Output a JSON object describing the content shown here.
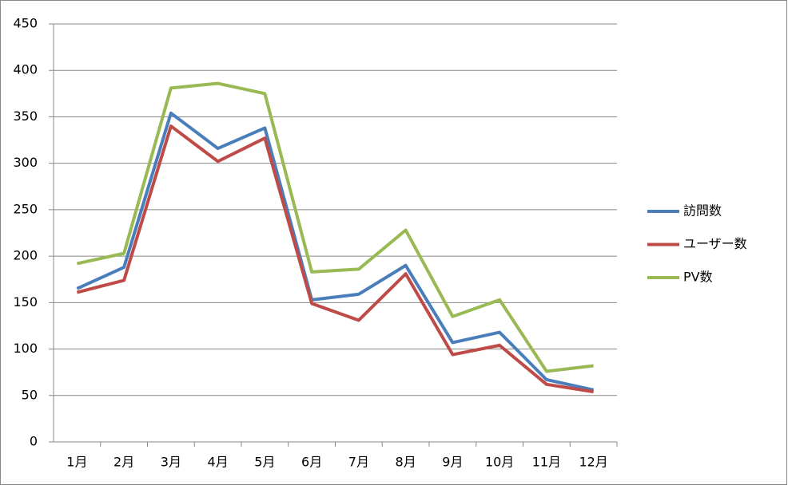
{
  "chart_data": {
    "type": "line",
    "categories": [
      "1月",
      "2月",
      "3月",
      "4月",
      "5月",
      "6月",
      "7月",
      "8月",
      "9月",
      "10月",
      "11月",
      "12月"
    ],
    "series": [
      {
        "name": "訪問数",
        "color": "#4a7ebb",
        "values": [
          165,
          188,
          354,
          316,
          338,
          153,
          159,
          190,
          107,
          118,
          67,
          56
        ]
      },
      {
        "name": "ユーザー数",
        "color": "#be4b48",
        "values": [
          161,
          174,
          340,
          302,
          327,
          149,
          131,
          181,
          94,
          104,
          62,
          54
        ]
      },
      {
        "name": "PV数",
        "color": "#98b954",
        "values": [
          192,
          203,
          381,
          386,
          375,
          183,
          186,
          228,
          135,
          153,
          76,
          82
        ]
      }
    ],
    "ylim": [
      0,
      450
    ],
    "yticks": [
      0,
      50,
      100,
      150,
      200,
      250,
      300,
      350,
      400,
      450
    ],
    "grid": true,
    "legend": "right"
  }
}
